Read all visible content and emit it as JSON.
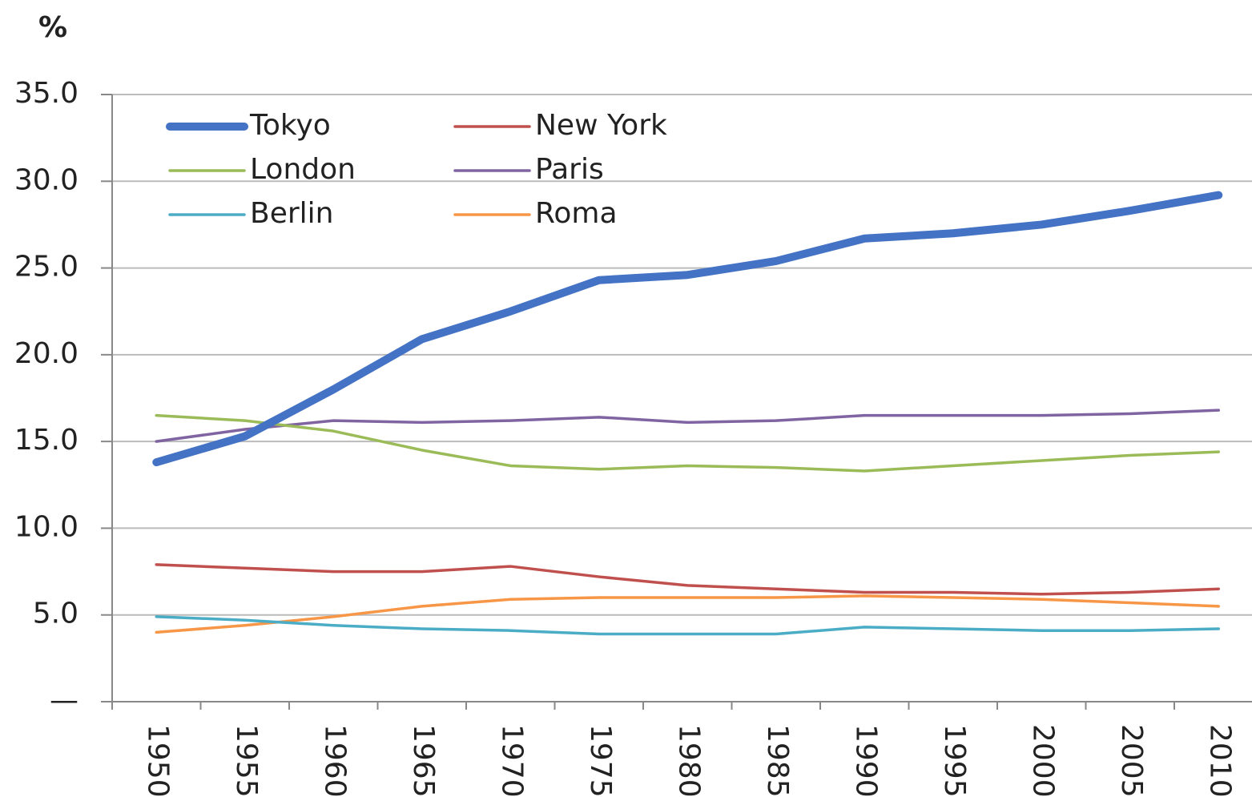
{
  "chart_data": {
    "type": "line",
    "title": "%",
    "categories": [
      "1950",
      "1955",
      "1960",
      "1965",
      "1970",
      "1975",
      "1980",
      "1985",
      "1990",
      "1995",
      "2000",
      "2005",
      "2010"
    ],
    "series": [
      {
        "name": "Tokyo",
        "color": "#4472c4",
        "line_width": 10,
        "values": [
          13.8,
          15.3,
          18.0,
          20.9,
          22.5,
          24.3,
          24.6,
          25.4,
          26.7,
          27.0,
          27.5,
          28.3,
          29.2
        ]
      },
      {
        "name": "New York",
        "color": "#c0504d",
        "line_width": 3.5,
        "values": [
          7.9,
          7.7,
          7.5,
          7.5,
          7.8,
          7.2,
          6.7,
          6.5,
          6.3,
          6.3,
          6.2,
          6.3,
          6.5
        ]
      },
      {
        "name": "London",
        "color": "#9bbb59",
        "line_width": 3.5,
        "values": [
          16.5,
          16.2,
          15.6,
          14.5,
          13.6,
          13.4,
          13.6,
          13.5,
          13.3,
          13.6,
          13.9,
          14.2,
          14.4
        ]
      },
      {
        "name": "Paris",
        "color": "#8064a2",
        "line_width": 3.5,
        "values": [
          15.0,
          15.7,
          16.2,
          16.1,
          16.2,
          16.4,
          16.1,
          16.2,
          16.5,
          16.5,
          16.5,
          16.6,
          16.8
        ]
      },
      {
        "name": "Berlin",
        "color": "#4bacc6",
        "line_width": 3.5,
        "values": [
          4.9,
          4.7,
          4.4,
          4.2,
          4.1,
          3.9,
          3.9,
          3.9,
          4.3,
          4.2,
          4.1,
          4.1,
          4.2
        ]
      },
      {
        "name": "Roma",
        "color": "#f79646",
        "line_width": 3.5,
        "values": [
          4.0,
          4.4,
          4.9,
          5.5,
          5.9,
          6.0,
          6.0,
          6.0,
          6.1,
          6.0,
          5.9,
          5.7,
          5.5
        ]
      }
    ],
    "ylim": [
      0,
      35
    ],
    "yticks": [
      {
        "value": 0,
        "label": "—"
      },
      {
        "value": 5,
        "label": "5.0"
      },
      {
        "value": 10,
        "label": "10.0"
      },
      {
        "value": 15,
        "label": "15.0"
      },
      {
        "value": 20,
        "label": "20.0"
      },
      {
        "value": 25,
        "label": "25.0"
      },
      {
        "value": 30,
        "label": "30.0"
      },
      {
        "value": 35,
        "label": "35.0"
      }
    ],
    "grid": true,
    "legend": "upper left"
  }
}
